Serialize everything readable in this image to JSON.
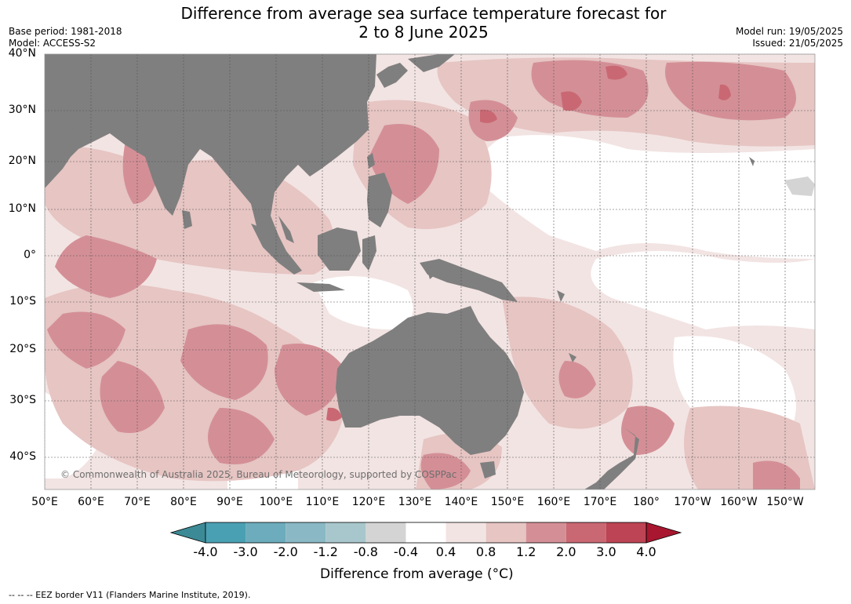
{
  "title_line1": "Difference from average sea surface temperature forecast for",
  "title_line2": "2 to 8 June 2025",
  "base_period": "Base period: 1981-2018",
  "model": "Model: ACCESS-S2",
  "model_run": "Model run: 19/05/2025",
  "issued": "Issued: 21/05/2025",
  "copyright": "© Commonwealth of Australia 2025, Bureau of Meteorology, supported by COSPPac",
  "footnote": "--  --  -- EEZ border V11 (Flanders Marine Institute, 2019).",
  "colorbar_title": "Difference from average (°C)",
  "colorbar_ticks": [
    "-4.0",
    "-3.0",
    "-2.0",
    "-1.2",
    "-0.8",
    "-0.4",
    "0.4",
    "0.8",
    "1.2",
    "2.0",
    "3.0",
    "4.0"
  ],
  "colorbar_colors": [
    "#3c8a95",
    "#4aa0b3",
    "#6cacbc",
    "#8ab8c5",
    "#a8c7cc",
    "#d4d4d4",
    "#ffffff",
    "#f2e4e3",
    "#e6c5c3",
    "#d48f96",
    "#c96873",
    "#bd4454",
    "#a8162f"
  ],
  "lat_labels": [
    "40°N",
    "30°N",
    "20°N",
    "10°N",
    "0°",
    "10°S",
    "20°S",
    "30°S",
    "40°S"
  ],
  "lon_labels": [
    "50°E",
    "60°E",
    "70°E",
    "80°E",
    "90°E",
    "100°E",
    "110°E",
    "120°E",
    "130°E",
    "140°E",
    "150°E",
    "160°E",
    "170°E",
    "180°",
    "170°W",
    "160°W",
    "150°W"
  ],
  "land_color": "#7f7f7f"
}
